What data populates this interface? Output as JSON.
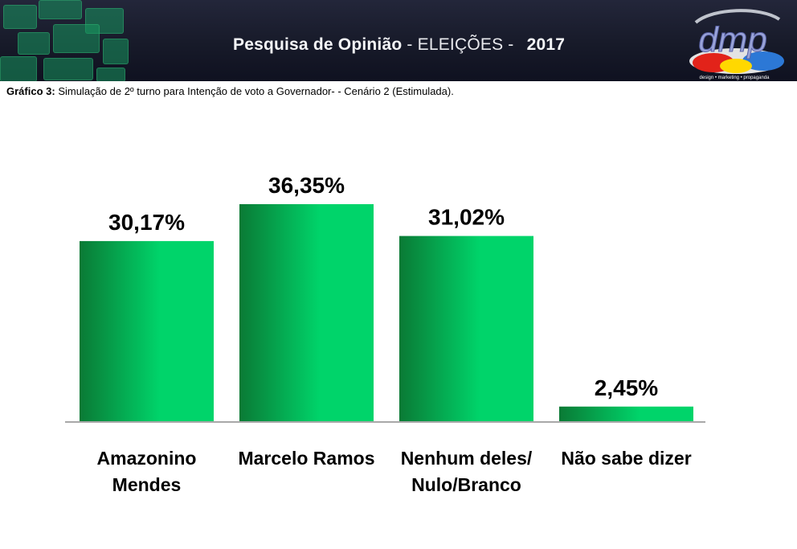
{
  "header": {
    "title_strong": "Pesquisa de Opinião",
    "title_rest": "- ELEIÇÕES -",
    "year": "2017",
    "logo_text": "dmp",
    "logo_tagline": "design • marketing • propaganda"
  },
  "caption": {
    "label": "Gráfico 3:",
    "text": "Simulação de 2º turno para Intenção de voto a Governador- - Cenário 2 (Estimulada)."
  },
  "colors": {
    "bar_dark": "#0a7a35",
    "bar_light": "#00d46a",
    "banner_bg": "#1b1e2e",
    "tile": "#18965f"
  },
  "chart_data": {
    "type": "bar",
    "categories": [
      [
        "Amazonino",
        "Mendes"
      ],
      [
        "Marcelo Ramos"
      ],
      [
        "Nenhum deles/",
        "Nulo/Branco"
      ],
      [
        "Não sabe dizer"
      ]
    ],
    "values": [
      30.17,
      36.35,
      31.02,
      2.45
    ],
    "data_labels": [
      "30,17%",
      "36,35%",
      "31,02%",
      "2,45%"
    ],
    "ylim": [
      0,
      36.35
    ],
    "grid": false,
    "legend": "none"
  }
}
